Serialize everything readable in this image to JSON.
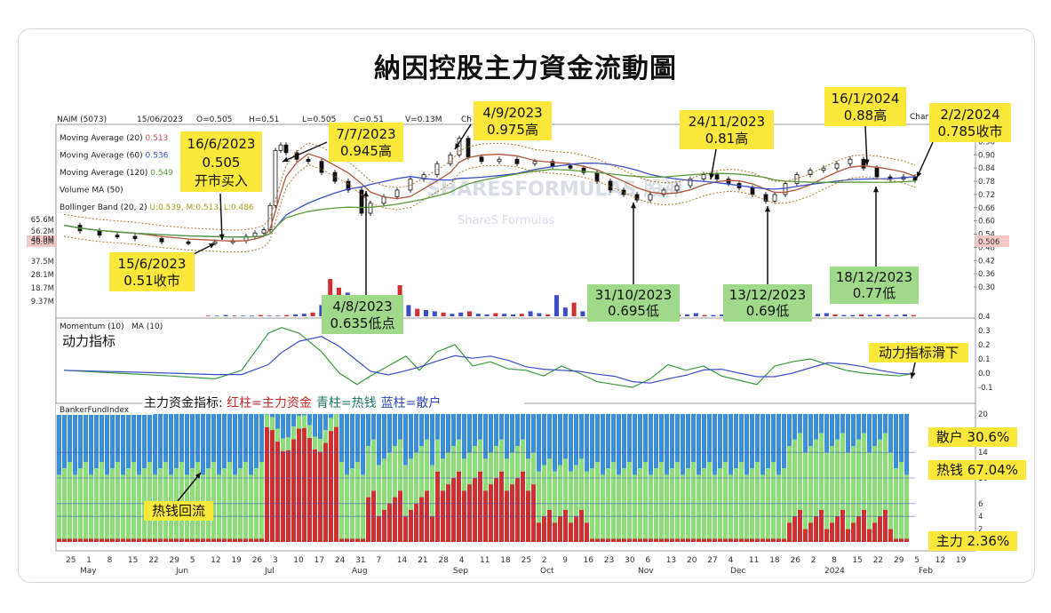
{
  "title": "納因控股主力資金流動圖",
  "header": {
    "ticker": "NAIM (5073)",
    "date": "15/06/2023",
    "open": "O=0.505",
    "high": "H=0.51",
    "low": "L=0.505",
    "close": "C=0.51",
    "volume": "V=0.13M",
    "chg": "Ch",
    "charts_mark": "Char"
  },
  "indicators": [
    {
      "label": "Moving Average (20)",
      "value": "0.513",
      "color": "#c0504d"
    },
    {
      "label": "Moving Average (60)",
      "value": "0.536",
      "color": "#3a4fc7"
    },
    {
      "label": "Moving Average (120)",
      "value": "0.549",
      "color": "#5a9a3a"
    },
    {
      "label": "Volume MA (50)",
      "value": "",
      "color": "#333333"
    },
    {
      "label": "Bollinger Band (20, 2)",
      "value": "U:0.539, M:0.513, L:0.486",
      "color": "#a0a020"
    }
  ],
  "watermark": {
    "line1": "SHARESFORMULAS 股神",
    "line2": "ShareS Formulas"
  },
  "price_axis": [
    "0.96",
    "0.90",
    "0.84",
    "0.78",
    "0.72",
    "0.66",
    "0.60",
    "0.54",
    "0.48",
    "0.42",
    "0.36",
    "0.30"
  ],
  "price_tag": "0.506",
  "volume_axis": [
    "65.6M",
    "56.2M",
    "46.9M",
    "50.0M",
    "37.5M",
    "28.1M",
    "18.7M",
    "9.37M"
  ],
  "momentum": {
    "label": "Momentum (10)",
    "ma_label": "MA (10)",
    "caption": "动力指标",
    "axis": [
      "0.4",
      "0.3",
      "0.2",
      "0.1",
      "0.0",
      "-0.1"
    ]
  },
  "banker": {
    "label": "BankerFundIndex",
    "legend_prefix": "主力资金指标: ",
    "legend_red": "红柱=主力资金",
    "legend_cyan": "青柱=热钱",
    "legend_blue": "蓝柱=散户",
    "axis": [
      "20",
      "14",
      "10",
      "6",
      "4",
      "2"
    ]
  },
  "x_axis": {
    "days": [
      "25",
      "1",
      "8",
      "15",
      "22",
      "29",
      "5",
      "12",
      "19",
      "26",
      "3",
      "10",
      "17",
      "24",
      "31",
      "7",
      "14",
      "21",
      "28",
      "4",
      "11",
      "18",
      "25",
      "2",
      "9",
      "16",
      "23",
      "30",
      "6",
      "13",
      "20",
      "27",
      "4",
      "11",
      "18",
      "26",
      "2",
      "8",
      "15",
      "22",
      "29",
      "5",
      "12",
      "19"
    ],
    "months": [
      "May",
      "Jun",
      "Jul",
      "Aug",
      "Sep",
      "Oct",
      "Nov",
      "Dec",
      "2024",
      "Feb"
    ]
  },
  "annotations": [
    {
      "id": "a1",
      "lines": [
        "16/6/2023",
        "0.505",
        "开市买入"
      ],
      "style": "yellow"
    },
    {
      "id": "a2",
      "lines": [
        "7/7/2023",
        "0.945高"
      ],
      "style": "yellow"
    },
    {
      "id": "a3",
      "lines": [
        "4/9/2023",
        "0.975高"
      ],
      "style": "yellow"
    },
    {
      "id": "a4",
      "lines": [
        "24/11/2023",
        "0.81高"
      ],
      "style": "yellow"
    },
    {
      "id": "a5",
      "lines": [
        "16/1/2024",
        "0.88高"
      ],
      "style": "yellow"
    },
    {
      "id": "a6",
      "lines": [
        "2/2/2024",
        "0.785收市"
      ],
      "style": "yellow"
    },
    {
      "id": "a7",
      "lines": [
        "15/6/2023",
        "0.51收市"
      ],
      "style": "yellow"
    },
    {
      "id": "a8",
      "lines": [
        "4/8/2023",
        "0.635低点"
      ],
      "style": "green"
    },
    {
      "id": "a9",
      "lines": [
        "31/10/2023",
        "0.695低"
      ],
      "style": "green"
    },
    {
      "id": "a10",
      "lines": [
        "13/12/2023",
        "0.69低"
      ],
      "style": "green"
    },
    {
      "id": "a11",
      "lines": [
        "18/12/2023",
        "0.77低"
      ],
      "style": "green"
    },
    {
      "id": "a12",
      "lines": [
        "动力指标滑下"
      ],
      "style": "yellow"
    },
    {
      "id": "a13",
      "lines": [
        "散户 30.6%"
      ],
      "style": "yellow"
    },
    {
      "id": "a14",
      "lines": [
        "热钱 67.04%"
      ],
      "style": "yellow"
    },
    {
      "id": "a15",
      "lines": [
        "主力 2.36%"
      ],
      "style": "yellow"
    },
    {
      "id": "a16",
      "lines": [
        "热钱回流"
      ],
      "style": "yellow"
    }
  ],
  "chart_data": {
    "type": "line",
    "title": "納因控股主力資金流動圖",
    "xlabel": "",
    "ylabel": "",
    "ylim": [
      0.3,
      0.99
    ],
    "key_points": [
      {
        "date": "15/6/2023",
        "price": 0.51,
        "note": "收市"
      },
      {
        "date": "16/6/2023",
        "price": 0.505,
        "note": "开市买入"
      },
      {
        "date": "7/7/2023",
        "price": 0.945,
        "note": "高"
      },
      {
        "date": "4/8/2023",
        "price": 0.635,
        "note": "低点"
      },
      {
        "date": "4/9/2023",
        "price": 0.975,
        "note": "高"
      },
      {
        "date": "31/10/2023",
        "price": 0.695,
        "note": "低"
      },
      {
        "date": "24/11/2023",
        "price": 0.81,
        "note": "高"
      },
      {
        "date": "13/12/2023",
        "price": 0.69,
        "note": "低"
      },
      {
        "date": "18/12/2023",
        "price": 0.77,
        "note": "低"
      },
      {
        "date": "16/1/2024",
        "price": 0.88,
        "note": "高"
      },
      {
        "date": "2/2/2024",
        "price": 0.785,
        "note": "收市"
      }
    ],
    "fund_split": {
      "散户": 30.6,
      "热钱": 67.04,
      "主力": 2.36
    },
    "series": [
      {
        "name": "Moving Average (20)",
        "last": 0.513
      },
      {
        "name": "Moving Average (60)",
        "last": 0.536
      },
      {
        "name": "Moving Average (120)",
        "last": 0.549
      }
    ]
  }
}
